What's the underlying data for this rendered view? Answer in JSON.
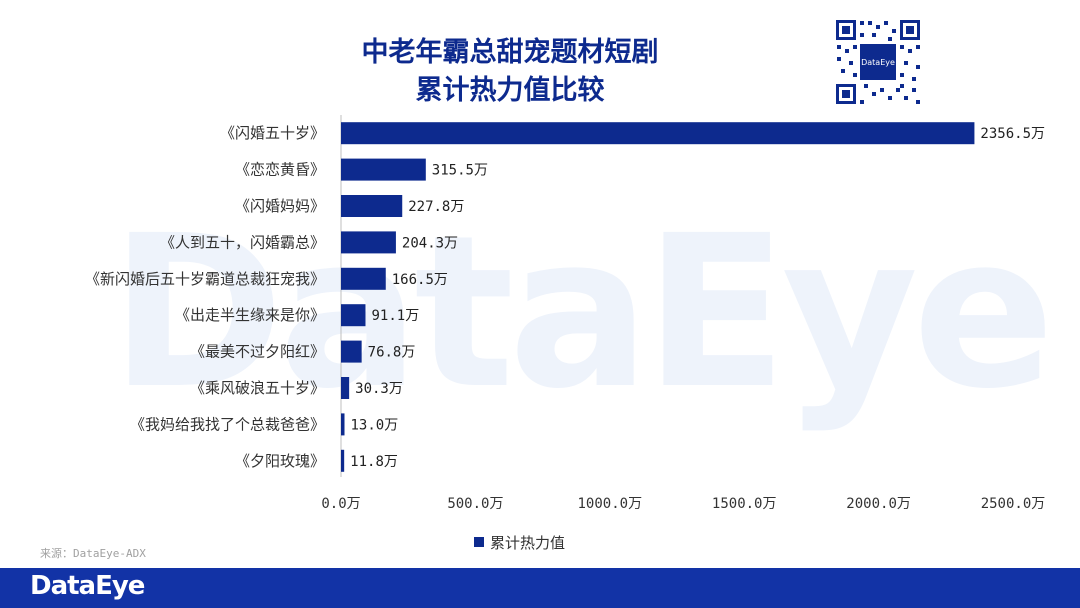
{
  "header": {
    "title_line1": "中老年霸总甜宠题材短剧",
    "title_line2": "累计热力值比较",
    "qr_label": "DataEye"
  },
  "watermark": "DataEye",
  "brand_color": "#0d2a8e",
  "chart_data": {
    "type": "bar",
    "orientation": "horizontal",
    "categories": [
      "《闪婚五十岁》",
      "《恋恋黄昏》",
      "《闪婚妈妈》",
      "《人到五十，闪婚霸总》",
      "《新闪婚后五十岁霸道总裁狂宠我》",
      "《出走半生缘来是你》",
      "《最美不过夕阳红》",
      "《乘风破浪五十岁》",
      "《我妈给我找了个总裁爸爸》",
      "《夕阳玫瑰》"
    ],
    "series": [
      {
        "name": "累计热力值",
        "values": [
          2356.5,
          315.5,
          227.8,
          204.3,
          166.5,
          91.1,
          76.8,
          30.3,
          13.0,
          11.8
        ],
        "labels": [
          "2356.5万",
          "315.5万",
          "227.8万",
          "204.3万",
          "166.5万",
          "91.1万",
          "76.8万",
          "30.3万",
          "13.0万",
          "11.8万"
        ]
      }
    ],
    "xlim": [
      0,
      2500
    ],
    "xticks": [
      0,
      500,
      1000,
      1500,
      2000,
      2500
    ],
    "xtick_labels": [
      "0.0万",
      "500.0万",
      "1000.0万",
      "1500.0万",
      "2000.0万",
      "2500.0万"
    ],
    "legend": "bottom",
    "grid": false
  },
  "source": "来源：DataEye-ADX",
  "footer": {
    "logo": "DataEye"
  }
}
